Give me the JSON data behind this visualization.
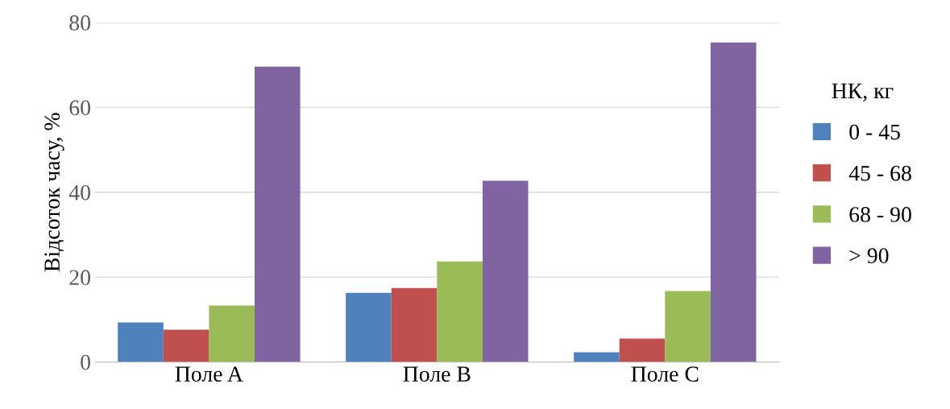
{
  "chart_data": {
    "type": "bar",
    "ylabel": "Відсоток часу, %",
    "legend_title": "НК, кг",
    "categories": [
      "Поле A",
      "Поле B",
      "Поле C"
    ],
    "series": [
      {
        "name": "0 - 45",
        "color": "#4f81bd",
        "values": [
          9.3,
          16.3,
          2.3
        ]
      },
      {
        "name": "45 - 68",
        "color": "#c0504d",
        "values": [
          7.6,
          17.4,
          5.5
        ]
      },
      {
        "name": "68 - 90",
        "color": "#9bbb59",
        "values": [
          13.3,
          23.7,
          16.7
        ]
      },
      {
        "name": "> 90",
        "color": "#8064a2",
        "values": [
          69.6,
          42.7,
          75.3
        ]
      }
    ],
    "ylim": [
      0,
      80
    ],
    "yticks": [
      0,
      20,
      40,
      60,
      80
    ],
    "grid": "y",
    "legend": "right"
  }
}
